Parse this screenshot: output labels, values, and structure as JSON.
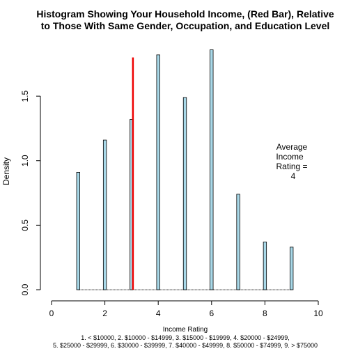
{
  "chart_data": {
    "type": "bar",
    "title": [
      "Histogram Showing Your Household Income, (Red Bar), Relative",
      "to Those With Same Gender, Occupation, and Education Level"
    ],
    "xlabel": "Income Rating",
    "ylabel": "Density",
    "xlim": [
      0,
      10
    ],
    "ylim": [
      0,
      1.9
    ],
    "xticks": [
      0,
      2,
      4,
      6,
      8,
      10
    ],
    "yticks": [
      0.0,
      0.5,
      1.0,
      1.5
    ],
    "ytick_labels": [
      "0.0",
      "0.5",
      "1.0",
      "1.5"
    ],
    "x": [
      1,
      2,
      3,
      4,
      5,
      6,
      7,
      8,
      9
    ],
    "values": [
      0.91,
      1.16,
      1.32,
      1.82,
      1.49,
      1.86,
      0.74,
      0.37,
      0.33
    ],
    "bar_color": "#a8d8e8",
    "highlight": {
      "x": 3,
      "value": 1.8,
      "color": "#ee0000"
    },
    "annotation": [
      "Average",
      "Income",
      "Rating =",
      "4"
    ],
    "legend_notes": [
      "1. < $10000, 2. $10000 - $14999, 3. $15000 - $19999, 4. $20000 - $24999,",
      "5. $25000 - $29999, 6. $30000 - $39999, 7. $40000 - $49999, 8. $50000 - $74999, 9. > $75000"
    ]
  }
}
